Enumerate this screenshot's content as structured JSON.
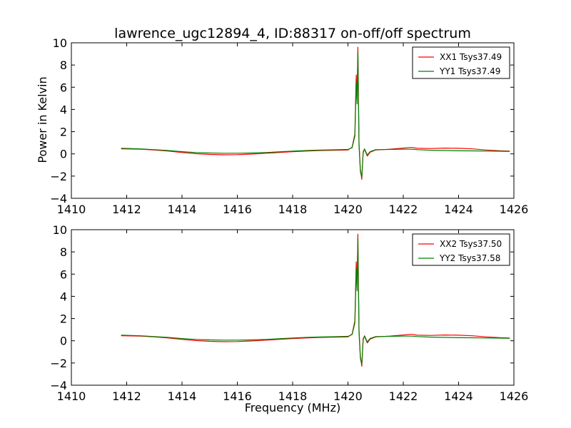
{
  "chart_data": {
    "title": "lawrence_ugc12894_4, ID:88317 on-off/off spectrum",
    "xlabel": "Frequency (MHz)",
    "ylabel": "Power in Kelvin",
    "panels": [
      {
        "type": "line",
        "xlim": [
          1410,
          1426
        ],
        "ylim": [
          -4,
          10
        ],
        "xticks": [
          "1410",
          "1412",
          "1414",
          "1416",
          "1418",
          "1420",
          "1422",
          "1424",
          "1426"
        ],
        "yticks": [
          "10",
          "8",
          "6",
          "4",
          "2",
          "0",
          "−2",
          "−4"
        ],
        "legend_position": "top-right",
        "series": [
          {
            "name": "XX1 Tsys37.49",
            "color": "#ff0000",
            "x": [
              1411.8,
              1412.5,
              1413.0,
              1413.5,
              1414.0,
              1414.5,
              1415.0,
              1415.5,
              1416.0,
              1416.5,
              1417.0,
              1417.5,
              1418.0,
              1418.5,
              1419.0,
              1419.5,
              1420.0,
              1420.15,
              1420.25,
              1420.3,
              1420.33,
              1420.36,
              1420.4,
              1420.45,
              1420.5,
              1420.55,
              1420.6,
              1420.7,
              1420.8,
              1421.0,
              1421.5,
              1422.0,
              1422.3,
              1422.5,
              1423.0,
              1423.5,
              1424.0,
              1424.5,
              1425.0,
              1425.5,
              1425.85
            ],
            "y": [
              0.45,
              0.42,
              0.35,
              0.25,
              0.12,
              0.02,
              -0.05,
              -0.08,
              -0.07,
              -0.02,
              0.05,
              0.12,
              0.2,
              0.25,
              0.3,
              0.33,
              0.35,
              0.6,
              1.8,
              7.1,
              4.8,
              9.6,
              1.0,
              -1.4,
              -2.3,
              0.2,
              0.4,
              -0.2,
              0.15,
              0.35,
              0.42,
              0.52,
              0.58,
              0.5,
              0.48,
              0.52,
              0.5,
              0.45,
              0.35,
              0.28,
              0.25
            ]
          },
          {
            "name": "YY1 Tsys37.49",
            "color": "#008000",
            "x": [
              1411.8,
              1412.5,
              1413.0,
              1413.5,
              1414.0,
              1414.5,
              1415.0,
              1415.5,
              1416.0,
              1416.5,
              1417.0,
              1417.5,
              1418.0,
              1418.5,
              1419.0,
              1419.5,
              1420.0,
              1420.15,
              1420.25,
              1420.3,
              1420.33,
              1420.36,
              1420.4,
              1420.45,
              1420.5,
              1420.55,
              1420.6,
              1420.7,
              1420.8,
              1421.0,
              1421.5,
              1422.0,
              1422.3,
              1422.5,
              1423.0,
              1423.5,
              1424.0,
              1424.5,
              1425.0,
              1425.5,
              1425.85
            ],
            "y": [
              0.5,
              0.45,
              0.38,
              0.3,
              0.2,
              0.12,
              0.08,
              0.06,
              0.06,
              0.08,
              0.12,
              0.18,
              0.25,
              0.3,
              0.34,
              0.37,
              0.4,
              0.55,
              1.6,
              6.5,
              4.5,
              9.2,
              0.8,
              -1.6,
              -2.1,
              0.1,
              0.45,
              -0.1,
              0.2,
              0.38,
              0.4,
              0.42,
              0.42,
              0.38,
              0.33,
              0.3,
              0.28,
              0.27,
              0.25,
              0.24,
              0.22
            ]
          }
        ]
      },
      {
        "type": "line",
        "xlim": [
          1410,
          1426
        ],
        "ylim": [
          -4,
          10
        ],
        "xticks": [
          "1410",
          "1412",
          "1414",
          "1416",
          "1418",
          "1420",
          "1422",
          "1424",
          "1426"
        ],
        "yticks": [
          "10",
          "8",
          "6",
          "4",
          "2",
          "0",
          "−2",
          "−4"
        ],
        "legend_position": "top-right",
        "series": [
          {
            "name": "XX2 Tsys37.50",
            "color": "#ff0000",
            "x": [
              1411.8,
              1412.5,
              1413.0,
              1413.5,
              1414.0,
              1414.5,
              1415.0,
              1415.5,
              1416.0,
              1416.5,
              1417.0,
              1417.5,
              1418.0,
              1418.5,
              1419.0,
              1419.5,
              1420.0,
              1420.15,
              1420.25,
              1420.3,
              1420.33,
              1420.36,
              1420.4,
              1420.45,
              1420.5,
              1420.55,
              1420.6,
              1420.7,
              1420.8,
              1421.0,
              1421.5,
              1422.0,
              1422.3,
              1422.5,
              1423.0,
              1423.5,
              1424.0,
              1424.5,
              1425.0,
              1425.5,
              1425.85
            ],
            "y": [
              0.45,
              0.42,
              0.35,
              0.25,
              0.12,
              0.02,
              -0.05,
              -0.08,
              -0.07,
              -0.02,
              0.05,
              0.12,
              0.2,
              0.25,
              0.3,
              0.33,
              0.35,
              0.6,
              1.8,
              7.1,
              4.8,
              9.6,
              1.0,
              -1.4,
              -2.3,
              0.2,
              0.4,
              -0.2,
              0.15,
              0.35,
              0.42,
              0.52,
              0.58,
              0.5,
              0.48,
              0.52,
              0.5,
              0.45,
              0.35,
              0.28,
              0.25
            ]
          },
          {
            "name": "YY2 Tsys37.58",
            "color": "#008000",
            "x": [
              1411.8,
              1412.5,
              1413.0,
              1413.5,
              1414.0,
              1414.5,
              1415.0,
              1415.5,
              1416.0,
              1416.5,
              1417.0,
              1417.5,
              1418.0,
              1418.5,
              1419.0,
              1419.5,
              1420.0,
              1420.15,
              1420.25,
              1420.3,
              1420.33,
              1420.36,
              1420.4,
              1420.45,
              1420.5,
              1420.55,
              1420.6,
              1420.7,
              1420.8,
              1421.0,
              1421.5,
              1422.0,
              1422.3,
              1422.5,
              1423.0,
              1423.5,
              1424.0,
              1424.5,
              1425.0,
              1425.5,
              1425.85
            ],
            "y": [
              0.5,
              0.45,
              0.38,
              0.3,
              0.2,
              0.12,
              0.08,
              0.06,
              0.06,
              0.08,
              0.12,
              0.18,
              0.25,
              0.3,
              0.34,
              0.37,
              0.4,
              0.55,
              1.6,
              6.5,
              4.5,
              9.2,
              0.8,
              -1.6,
              -2.1,
              0.1,
              0.45,
              -0.1,
              0.2,
              0.38,
              0.4,
              0.42,
              0.42,
              0.38,
              0.33,
              0.3,
              0.28,
              0.27,
              0.25,
              0.24,
              0.22
            ]
          }
        ]
      }
    ]
  }
}
